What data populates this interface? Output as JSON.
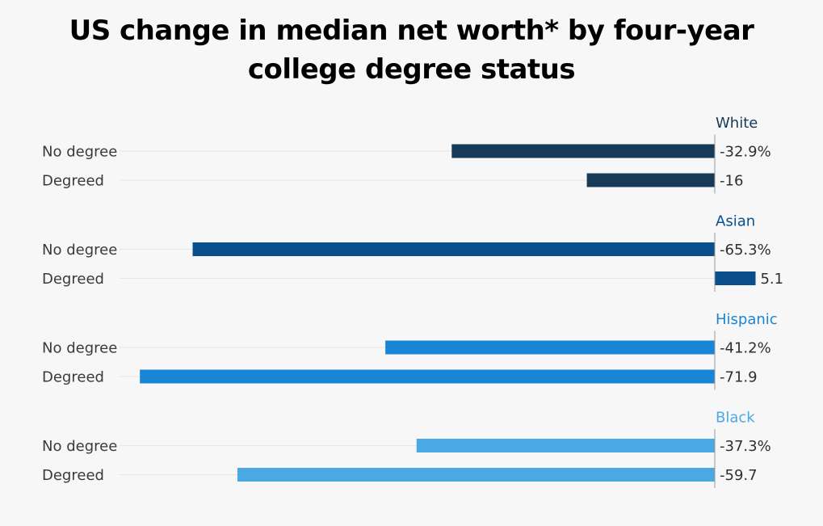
{
  "chart_data": {
    "type": "bar",
    "orientation": "horizontal",
    "title": "US change in median net worth* by four-year college degree status",
    "title_lines": [
      "US change in median net worth* by four-year",
      "college degree status"
    ],
    "categories": [
      "No degree",
      "Degreed"
    ],
    "series": [
      {
        "name": "White",
        "color": "#163a57",
        "values": [
          -32.9,
          -16
        ],
        "labels": [
          "-32.9%",
          "-16"
        ]
      },
      {
        "name": "Asian",
        "color": "#0a4f8c",
        "values": [
          -65.3,
          5.1
        ],
        "labels": [
          "-65.3%",
          "5.1"
        ]
      },
      {
        "name": "Hispanic",
        "color": "#1a84d6",
        "values": [
          -41.2,
          -71.9
        ],
        "labels": [
          "-41.2%",
          "-71.9"
        ]
      },
      {
        "name": "Black",
        "color": "#4aa9e3",
        "values": [
          -37.3,
          -59.7
        ],
        "labels": [
          "-37.3%",
          "-59.7"
        ]
      }
    ],
    "xlim": [
      -72,
      6
    ],
    "grid": true
  }
}
